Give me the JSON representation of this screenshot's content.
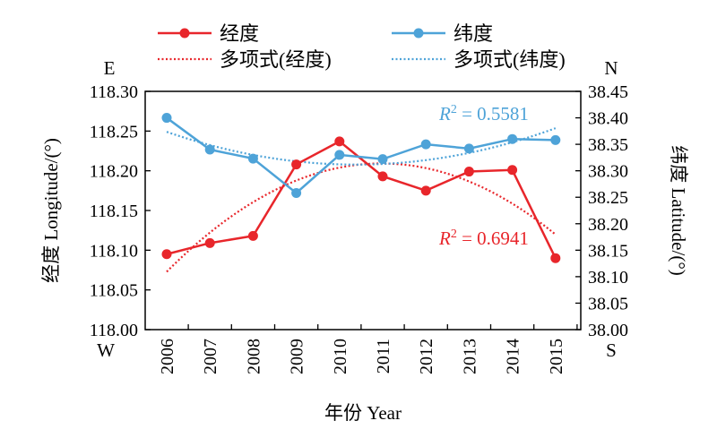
{
  "chart_data": {
    "type": "line",
    "categories": [
      "2006",
      "2007",
      "2008",
      "2009",
      "2010",
      "2011",
      "2012",
      "2013",
      "2014",
      "2015"
    ],
    "series": [
      {
        "name": "经度",
        "axis": "left",
        "color": "#e8262b",
        "values": [
          118.095,
          118.109,
          118.118,
          118.208,
          118.237,
          118.193,
          118.175,
          118.199,
          118.201,
          118.09
        ],
        "trend_name": "多项式(经度)",
        "r2_label": "= 0.6941",
        "r2_var": "R",
        "r2_sup": "2"
      },
      {
        "name": "纬度",
        "axis": "right",
        "color": "#4ea3d8",
        "values": [
          38.4,
          38.34,
          38.323,
          38.258,
          38.33,
          38.322,
          38.35,
          38.342,
          38.36,
          38.358
        ],
        "trend_name": "多项式(纬度)",
        "r2_label": "= 0.5581",
        "r2_var": "R",
        "r2_sup": "2"
      }
    ],
    "xlabel": "年份 Year",
    "ylabel_left": "经度 Longitude/(°)",
    "ylabel_right": "纬度 Latitude/(°)",
    "ylim_left": [
      118.0,
      118.3
    ],
    "ylim_right": [
      38.0,
      38.45
    ],
    "yticks_left": [
      "118.00",
      "118.05",
      "118.10",
      "118.15",
      "118.20",
      "118.25",
      "118.30"
    ],
    "yticks_right": [
      "38.00",
      "38.05",
      "38.10",
      "38.15",
      "38.20",
      "38.25",
      "38.30",
      "38.35",
      "38.40",
      "38.45"
    ],
    "corner_labels": {
      "left_top": "E",
      "left_bottom": "W",
      "right_top": "N",
      "right_bottom": "S"
    },
    "legend_position": "top",
    "grid": false,
    "trendline": "polynomial order 2"
  }
}
